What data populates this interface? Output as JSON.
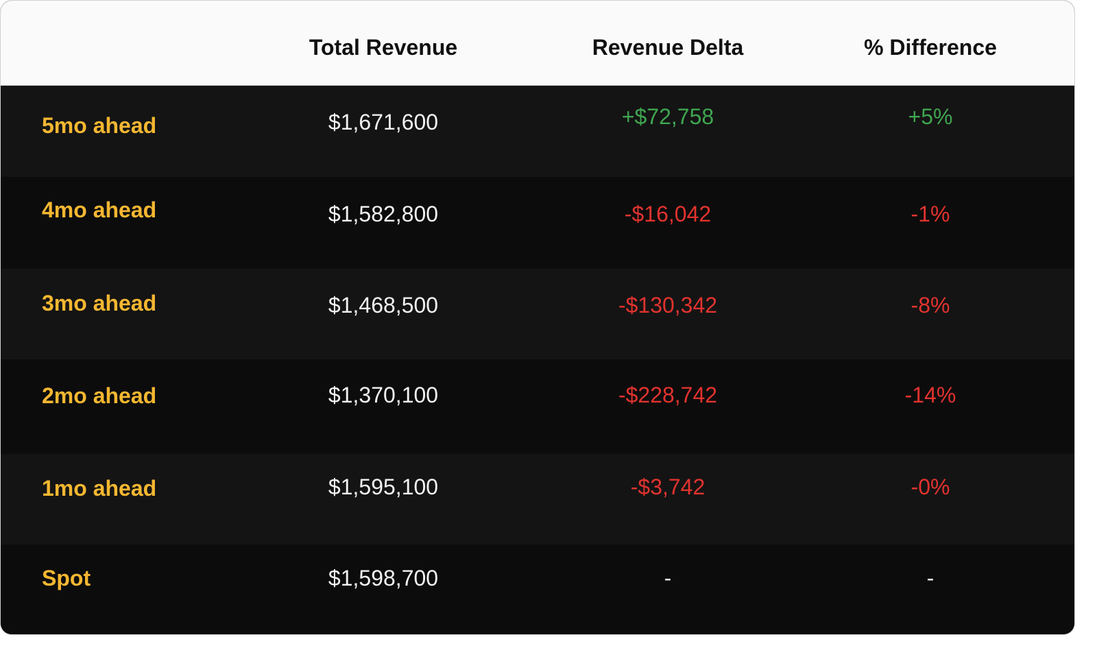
{
  "chart_data": {
    "type": "table",
    "columns": [
      "",
      "Total Revenue",
      "Revenue Delta",
      "% Difference"
    ],
    "rows": [
      {
        "label": "5mo ahead",
        "total_revenue": "$1,671,600",
        "revenue_delta": "+$72,758",
        "pct_difference": "+5%",
        "trend": "pos"
      },
      {
        "label": "4mo ahead",
        "total_revenue": "$1,582,800",
        "revenue_delta": "-$16,042",
        "pct_difference": "-1%",
        "trend": "neg"
      },
      {
        "label": "3mo ahead",
        "total_revenue": "$1,468,500",
        "revenue_delta": "-$130,342",
        "pct_difference": "-8%",
        "trend": "neg"
      },
      {
        "label": "2mo ahead",
        "total_revenue": "$1,370,100",
        "revenue_delta": "-$228,742",
        "pct_difference": "-14%",
        "trend": "neg"
      },
      {
        "label": "1mo ahead",
        "total_revenue": "$1,595,100",
        "revenue_delta": "-$3,742",
        "pct_difference": "-0%",
        "trend": "neg"
      },
      {
        "label": "Spot",
        "total_revenue": "$1,598,700",
        "revenue_delta": "-",
        "pct_difference": "-",
        "trend": "nil"
      }
    ]
  },
  "colors": {
    "row_label": "#f4b731",
    "positive": "#3fa650",
    "negative": "#e2332f",
    "header_background": "#fafafa",
    "body_background": "#0f0f0f"
  }
}
